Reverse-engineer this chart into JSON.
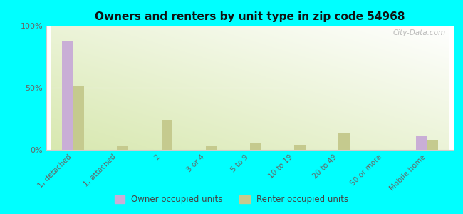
{
  "title": "Owners and renters by unit type in zip code 54968",
  "categories": [
    "1, detached",
    "1, attached",
    "2",
    "3 or 4",
    "5 to 9",
    "10 to 19",
    "20 to 49",
    "50 or more",
    "Mobile home"
  ],
  "owner_values": [
    88,
    0,
    0,
    0,
    0,
    0,
    0,
    0,
    11
  ],
  "renter_values": [
    51,
    3,
    24,
    3,
    6,
    4,
    13,
    0,
    8
  ],
  "owner_color": "#c9aed6",
  "renter_color": "#c5ca8e",
  "bg_color": "#00ffff",
  "ylim": [
    0,
    100
  ],
  "yticks": [
    0,
    50,
    100
  ],
  "ytick_labels": [
    "0%",
    "50%",
    "100%"
  ],
  "bar_width": 0.25,
  "legend_owner": "Owner occupied units",
  "legend_renter": "Renter occupied units",
  "watermark": "City-Data.com"
}
